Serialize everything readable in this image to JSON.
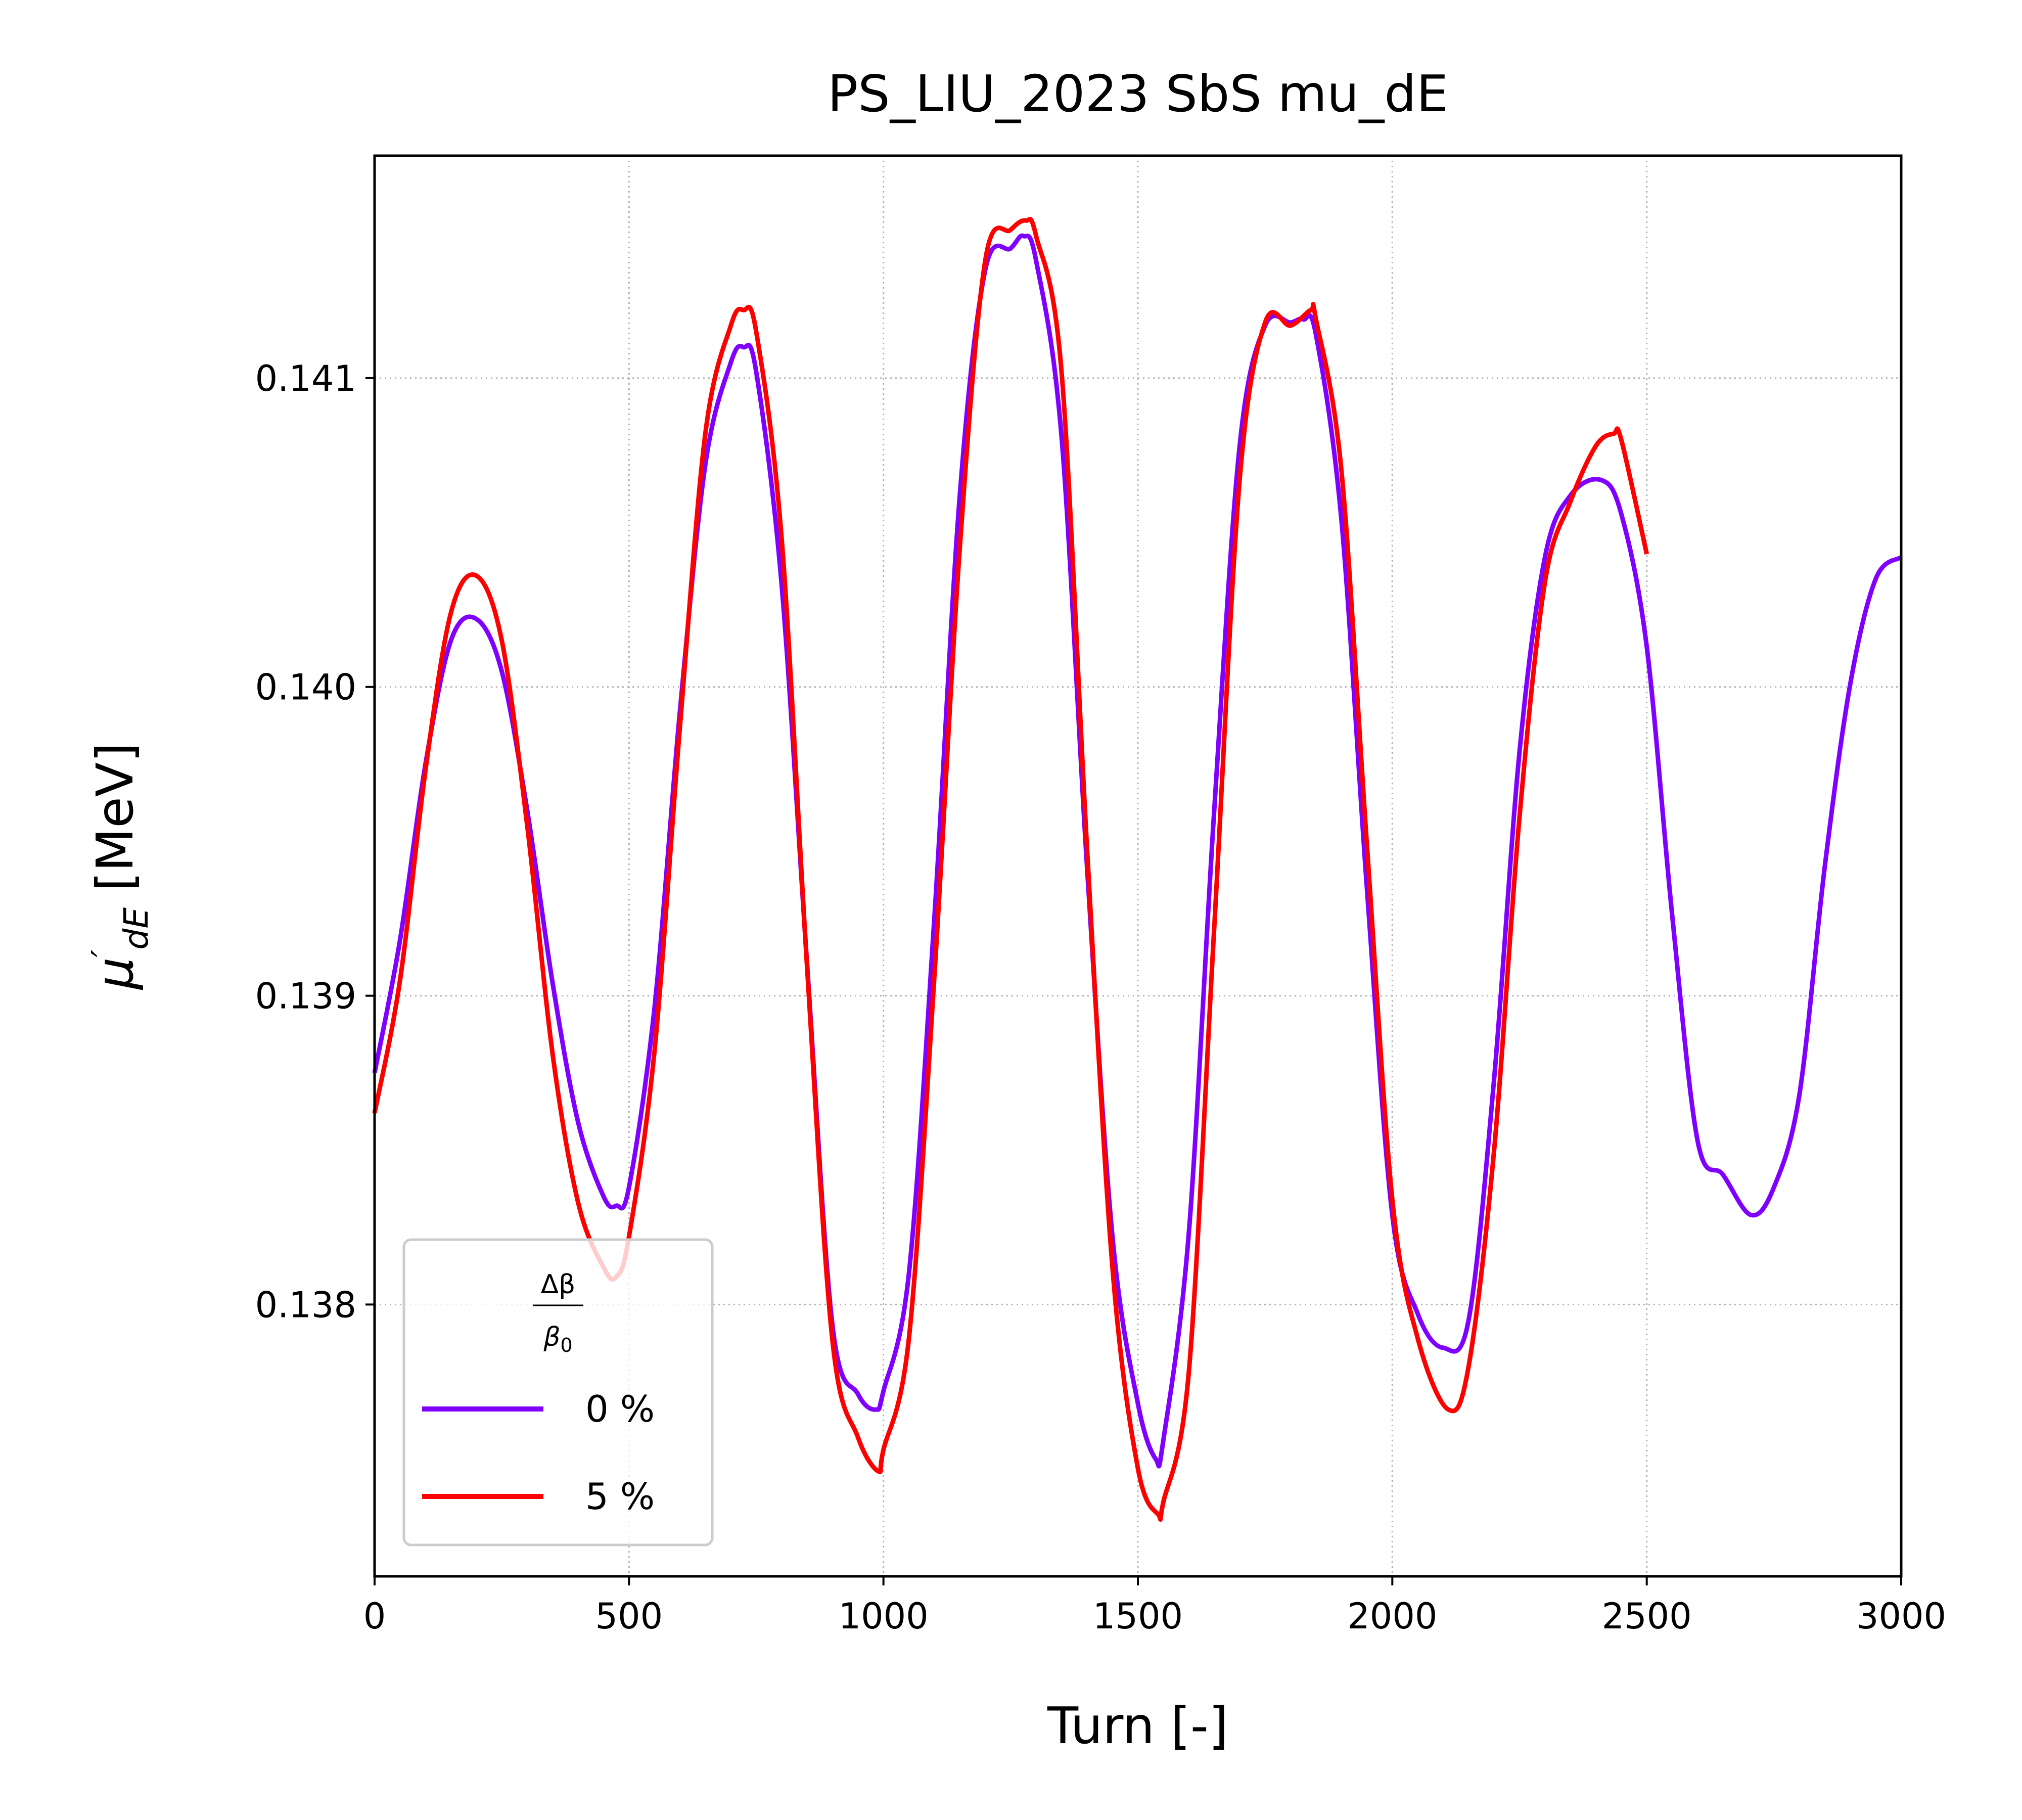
{
  "chart_data": {
    "type": "line",
    "title": "PS_LIU_2023 SbS mu_dE",
    "xlabel": "Turn [-]",
    "ylabel": {
      "symbol": "μ",
      "prime": "′",
      "subscript": "dE",
      "unit": " [MeV]"
    },
    "xlim": [
      0,
      3000
    ],
    "ylim": [
      0.13712,
      0.14172
    ],
    "xticks": [
      0,
      500,
      1000,
      1500,
      2000,
      2500,
      3000
    ],
    "yticks": [
      0.138,
      0.139,
      0.14,
      0.141
    ],
    "ytick_labels": [
      "0.138",
      "0.139",
      "0.140",
      "0.141"
    ],
    "grid": true,
    "legend": {
      "placement": "lower-left",
      "title": {
        "numerator": "Δβ",
        "denominator_symbol": "β",
        "denominator_sub": "0"
      }
    },
    "series": [
      {
        "name": "0 %",
        "color": "#8000ff",
        "x": [
          0,
          50,
          100,
          150,
          200,
          250,
          300,
          350,
          400,
          450,
          475,
          500,
          550,
          600,
          650,
          700,
          725,
          750,
          800,
          850,
          900,
          950,
          985,
          1000,
          1050,
          1100,
          1150,
          1200,
          1250,
          1275,
          1300,
          1350,
          1400,
          1450,
          1500,
          1535,
          1550,
          1600,
          1650,
          1700,
          1750,
          1800,
          1825,
          1850,
          1900,
          1950,
          2000,
          2050,
          2100,
          2150,
          2200,
          2250,
          2300,
          2350,
          2410,
          2450,
          2500,
          2550,
          2600,
          2650,
          2705,
          2750,
          2800,
          2850,
          2900,
          2950,
          3000
        ],
        "y": [
          0.13875,
          0.13918,
          0.13975,
          0.14015,
          0.14022,
          0.14005,
          0.1396,
          0.13904,
          0.13859,
          0.13835,
          0.13832,
          0.13838,
          0.13896,
          0.13992,
          0.14072,
          0.14105,
          0.1411,
          0.14102,
          0.14033,
          0.1391,
          0.13793,
          0.13771,
          0.13766,
          0.13772,
          0.1381,
          0.13925,
          0.14062,
          0.14135,
          0.14142,
          0.14146,
          0.14138,
          0.14081,
          0.13942,
          0.13822,
          0.13768,
          0.1375,
          0.13756,
          0.13823,
          0.1396,
          0.14078,
          0.14117,
          0.14118,
          0.14119,
          0.14114,
          0.14054,
          0.13935,
          0.13829,
          0.13797,
          0.13786,
          0.13795,
          0.13873,
          0.13979,
          0.14042,
          0.14062,
          0.14067,
          0.14056,
          0.14013,
          0.13926,
          0.13853,
          0.13842,
          0.13829,
          0.13838,
          0.13868,
          0.13942,
          0.14001,
          0.14035,
          0.14042
        ]
      },
      {
        "name": "5 %",
        "color": "#ff0000",
        "x": [
          0,
          50,
          100,
          150,
          200,
          250,
          300,
          350,
          400,
          450,
          475,
          500,
          550,
          600,
          650,
          700,
          725,
          750,
          800,
          850,
          900,
          950,
          990,
          1000,
          1050,
          1100,
          1150,
          1200,
          1250,
          1280,
          1300,
          1350,
          1400,
          1450,
          1500,
          1540,
          1550,
          1600,
          1650,
          1700,
          1750,
          1800,
          1840,
          1850,
          1900,
          1950,
          2000,
          2050,
          2110,
          2150,
          2200,
          2250,
          2300,
          2350,
          2400,
          2435,
          2450,
          2500
        ],
        "y": [
          0.13862,
          0.13905,
          0.13973,
          0.14024,
          0.14036,
          0.14015,
          0.13955,
          0.13881,
          0.13833,
          0.13812,
          0.13809,
          0.13822,
          0.13882,
          0.13987,
          0.14082,
          0.14117,
          0.14122,
          0.14115,
          0.14048,
          0.13909,
          0.13788,
          0.13757,
          0.13746,
          0.13753,
          0.13789,
          0.13906,
          0.14045,
          0.14138,
          0.14148,
          0.14151,
          0.14146,
          0.14102,
          0.13948,
          0.13812,
          0.13747,
          0.13732,
          0.13736,
          0.13778,
          0.13922,
          0.14067,
          0.14118,
          0.14117,
          0.14122,
          0.14119,
          0.1407,
          0.13949,
          0.13834,
          0.13789,
          0.13766,
          0.1378,
          0.1385,
          0.13958,
          0.14034,
          0.1406,
          0.14078,
          0.14082,
          0.1408,
          0.14043
        ]
      }
    ]
  }
}
